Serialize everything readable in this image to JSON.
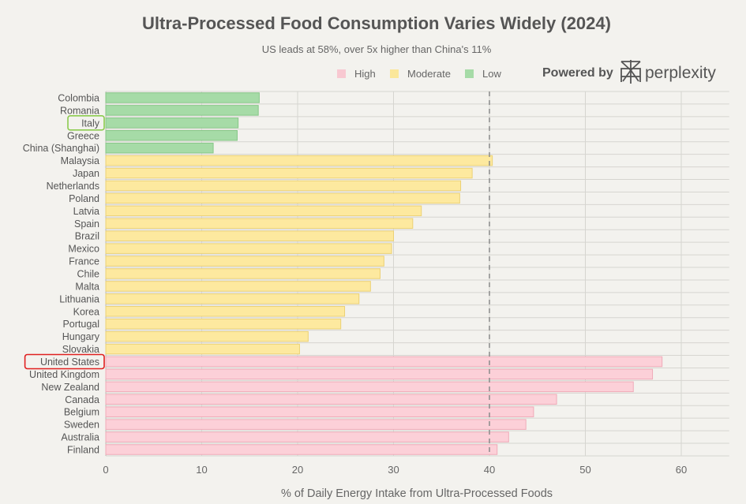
{
  "chart_data": {
    "type": "bar",
    "orientation": "horizontal",
    "title": "Ultra-Processed Food Consumption Varies Widely (2024)",
    "subtitle": "US leads at 58%, over 5x higher than China's 11%",
    "xlabel": "% of Daily Energy Intake from Ultra-Processed Foods",
    "ylabel": "",
    "xlim": [
      0,
      65
    ],
    "xticks": [
      0,
      10,
      20,
      30,
      40,
      50,
      60
    ],
    "reference_line": 40,
    "grid": true,
    "legend": {
      "position": "top-right",
      "entries": [
        {
          "key": "high",
          "label": "High",
          "color": "#f8c8d1"
        },
        {
          "key": "moderate",
          "label": "Moderate",
          "color": "#fbe79a"
        },
        {
          "key": "low",
          "label": "Low",
          "color": "#a6dba7"
        }
      ]
    },
    "bar_colors": {
      "high": {
        "fill": "#fcd0d8",
        "stroke": "#f0aab8"
      },
      "moderate": {
        "fill": "#fde99f",
        "stroke": "#ecd174"
      },
      "low": {
        "fill": "#a6dba7",
        "stroke": "#86c787"
      }
    },
    "categories": [
      "Colombia",
      "Romania",
      "Italy",
      "Greece",
      "China (Shanghai)",
      "Malaysia",
      "Japan",
      "Netherlands",
      "Poland",
      "Latvia",
      "Spain",
      "Brazil",
      "Mexico",
      "France",
      "Chile",
      "Malta",
      "Lithuania",
      "Korea",
      "Portugal",
      "Hungary",
      "Slovakia",
      "United States",
      "United Kingdom",
      "New Zealand",
      "Canada",
      "Belgium",
      "Sweden",
      "Australia",
      "Finland"
    ],
    "values": [
      16,
      15.9,
      13.8,
      13.7,
      11.2,
      40.3,
      38.2,
      37,
      36.9,
      32.9,
      32,
      30,
      29.8,
      29,
      28.6,
      27.6,
      26.4,
      24.9,
      24.5,
      21.1,
      20.2,
      58,
      57,
      55,
      47,
      44.6,
      43.8,
      42,
      40.8
    ],
    "groups": [
      "low",
      "low",
      "low",
      "low",
      "low",
      "moderate",
      "moderate",
      "moderate",
      "moderate",
      "moderate",
      "moderate",
      "moderate",
      "moderate",
      "moderate",
      "moderate",
      "moderate",
      "moderate",
      "moderate",
      "moderate",
      "moderate",
      "moderate",
      "high",
      "high",
      "high",
      "high",
      "high",
      "high",
      "high",
      "high"
    ],
    "highlighted": [
      {
        "category": "Italy",
        "color": "#8ccb4e"
      },
      {
        "category": "United States",
        "color": "#e02020"
      }
    ]
  },
  "branding": {
    "powered_by": "Powered by",
    "brand_name": "perplexity",
    "logo_icon": "perplexity-logo-icon"
  }
}
